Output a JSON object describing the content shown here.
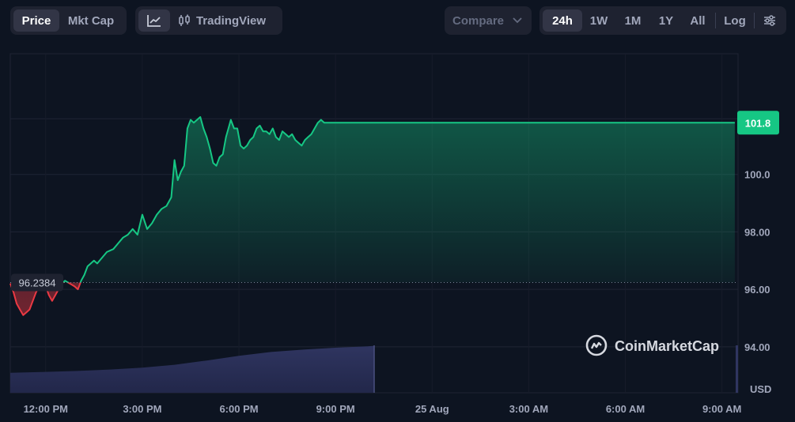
{
  "toolbar": {
    "price_tab": "Price",
    "mktcap_tab": "Mkt Cap",
    "tradingview": "TradingView",
    "compare": "Compare",
    "ranges": [
      "24h",
      "1W",
      "1M",
      "1Y",
      "All"
    ],
    "log": "Log",
    "icons": {
      "line": "line-chart-icon",
      "candles": "candlestick-icon",
      "compare_chevron": "chevron-down-icon",
      "settings": "settings-sliders-icon"
    }
  },
  "watermark": "CoinMarketCap",
  "colors": {
    "up": "#16c784",
    "down": "#ea3943",
    "volume": "#2c3150",
    "background": "#0d1421"
  },
  "chart_data": {
    "type": "line",
    "y_unit_label": "USD",
    "ylim": [
      92.4,
      104.2
    ],
    "y_ticks": [
      "94.00",
      "96.00",
      "98.00",
      "100.0"
    ],
    "x_ticks": [
      "12:00 PM",
      "3:00 PM",
      "6:00 PM",
      "9:00 PM",
      "25 Aug",
      "3:00 AM",
      "6:00 AM",
      "9:00 AM"
    ],
    "x_range_hours": [
      10.9,
      33.5
    ],
    "start_price_label": "96.2384",
    "start_price": 96.2384,
    "current_price_label": "101.8",
    "current_price": 101.8,
    "grid": true,
    "series": [
      {
        "x": [
          10.9,
          11.0,
          11.1,
          11.2,
          11.3,
          11.4,
          11.5,
          11.6,
          11.7,
          11.8,
          11.9,
          12.0,
          12.1,
          12.2,
          12.35,
          12.5,
          12.6,
          12.75,
          12.9,
          13.0,
          13.1,
          13.2,
          13.3,
          13.4,
          13.5,
          13.6,
          13.75,
          13.9,
          14.1,
          14.25,
          14.4,
          14.55,
          14.7,
          14.85,
          15.0,
          15.15,
          15.3,
          15.45,
          15.6,
          15.75,
          15.9,
          16.0,
          16.1,
          16.2,
          16.3,
          16.4,
          16.5,
          16.6,
          16.7,
          16.8,
          16.9,
          17.0,
          17.1,
          17.2,
          17.3,
          17.4,
          17.5,
          17.6,
          17.7,
          17.75,
          17.85,
          17.95,
          18.05,
          18.15,
          18.25,
          18.35,
          18.45,
          18.55,
          18.65,
          18.75,
          18.85,
          18.95,
          19.05,
          19.15,
          19.25,
          19.35,
          19.45,
          19.55,
          19.65,
          19.75,
          19.85,
          19.95,
          20.05,
          20.15,
          20.25,
          20.35,
          20.45,
          20.55,
          20.65,
          20.75,
          20.85,
          20.95,
          21.05,
          21.15,
          21.25,
          21.35,
          21.45,
          21.55,
          21.65,
          21.75,
          21.85,
          21.95,
          22.05,
          22.15,
          22.3,
          22.5,
          22.8,
          23.2,
          24.0,
          26.0,
          28.0,
          30.0,
          32.0,
          33.4
        ],
        "y": [
          96.2,
          95.9,
          95.5,
          95.3,
          95.1,
          95.2,
          95.3,
          95.6,
          95.9,
          96.1,
          96.2,
          96.1,
          95.8,
          95.6,
          95.9,
          96.2,
          96.3,
          96.2,
          96.1,
          96.0,
          96.3,
          96.5,
          96.8,
          96.9,
          97.0,
          96.9,
          97.1,
          97.3,
          97.4,
          97.6,
          97.8,
          97.9,
          98.1,
          97.9,
          98.6,
          98.1,
          98.3,
          98.6,
          98.8,
          98.9,
          99.2,
          100.5,
          99.8,
          100.1,
          100.3,
          101.6,
          101.9,
          101.8,
          101.9,
          102.0,
          101.6,
          101.3,
          100.9,
          100.4,
          100.3,
          100.6,
          100.7,
          101.3,
          101.7,
          101.9,
          101.6,
          101.6,
          101.0,
          100.9,
          101.0,
          101.2,
          101.3,
          101.6,
          101.7,
          101.5,
          101.5,
          101.4,
          101.6,
          101.3,
          101.2,
          101.5,
          101.4,
          101.3,
          101.4,
          101.2,
          101.1,
          101.0,
          101.2,
          101.3,
          101.4,
          101.6,
          101.8,
          101.9,
          101.8,
          101.8,
          101.8,
          101.8,
          101.8,
          101.8,
          101.8,
          101.8,
          101.8,
          101.8,
          101.8,
          101.8,
          101.8,
          101.8,
          101.8,
          101.8,
          101.8,
          101.8,
          101.8,
          101.8,
          101.8,
          101.8,
          101.8,
          101.8,
          101.8,
          101.8
        ]
      }
    ],
    "volume": {
      "x": [
        10.9,
        12.0,
        13.0,
        14.0,
        15.0,
        16.0,
        17.0,
        18.0,
        19.0,
        20.0,
        21.0,
        22.0,
        22.2
      ],
      "relative": [
        0.42,
        0.44,
        0.46,
        0.49,
        0.53,
        0.59,
        0.68,
        0.78,
        0.86,
        0.91,
        0.95,
        0.98,
        0.99
      ]
    }
  }
}
